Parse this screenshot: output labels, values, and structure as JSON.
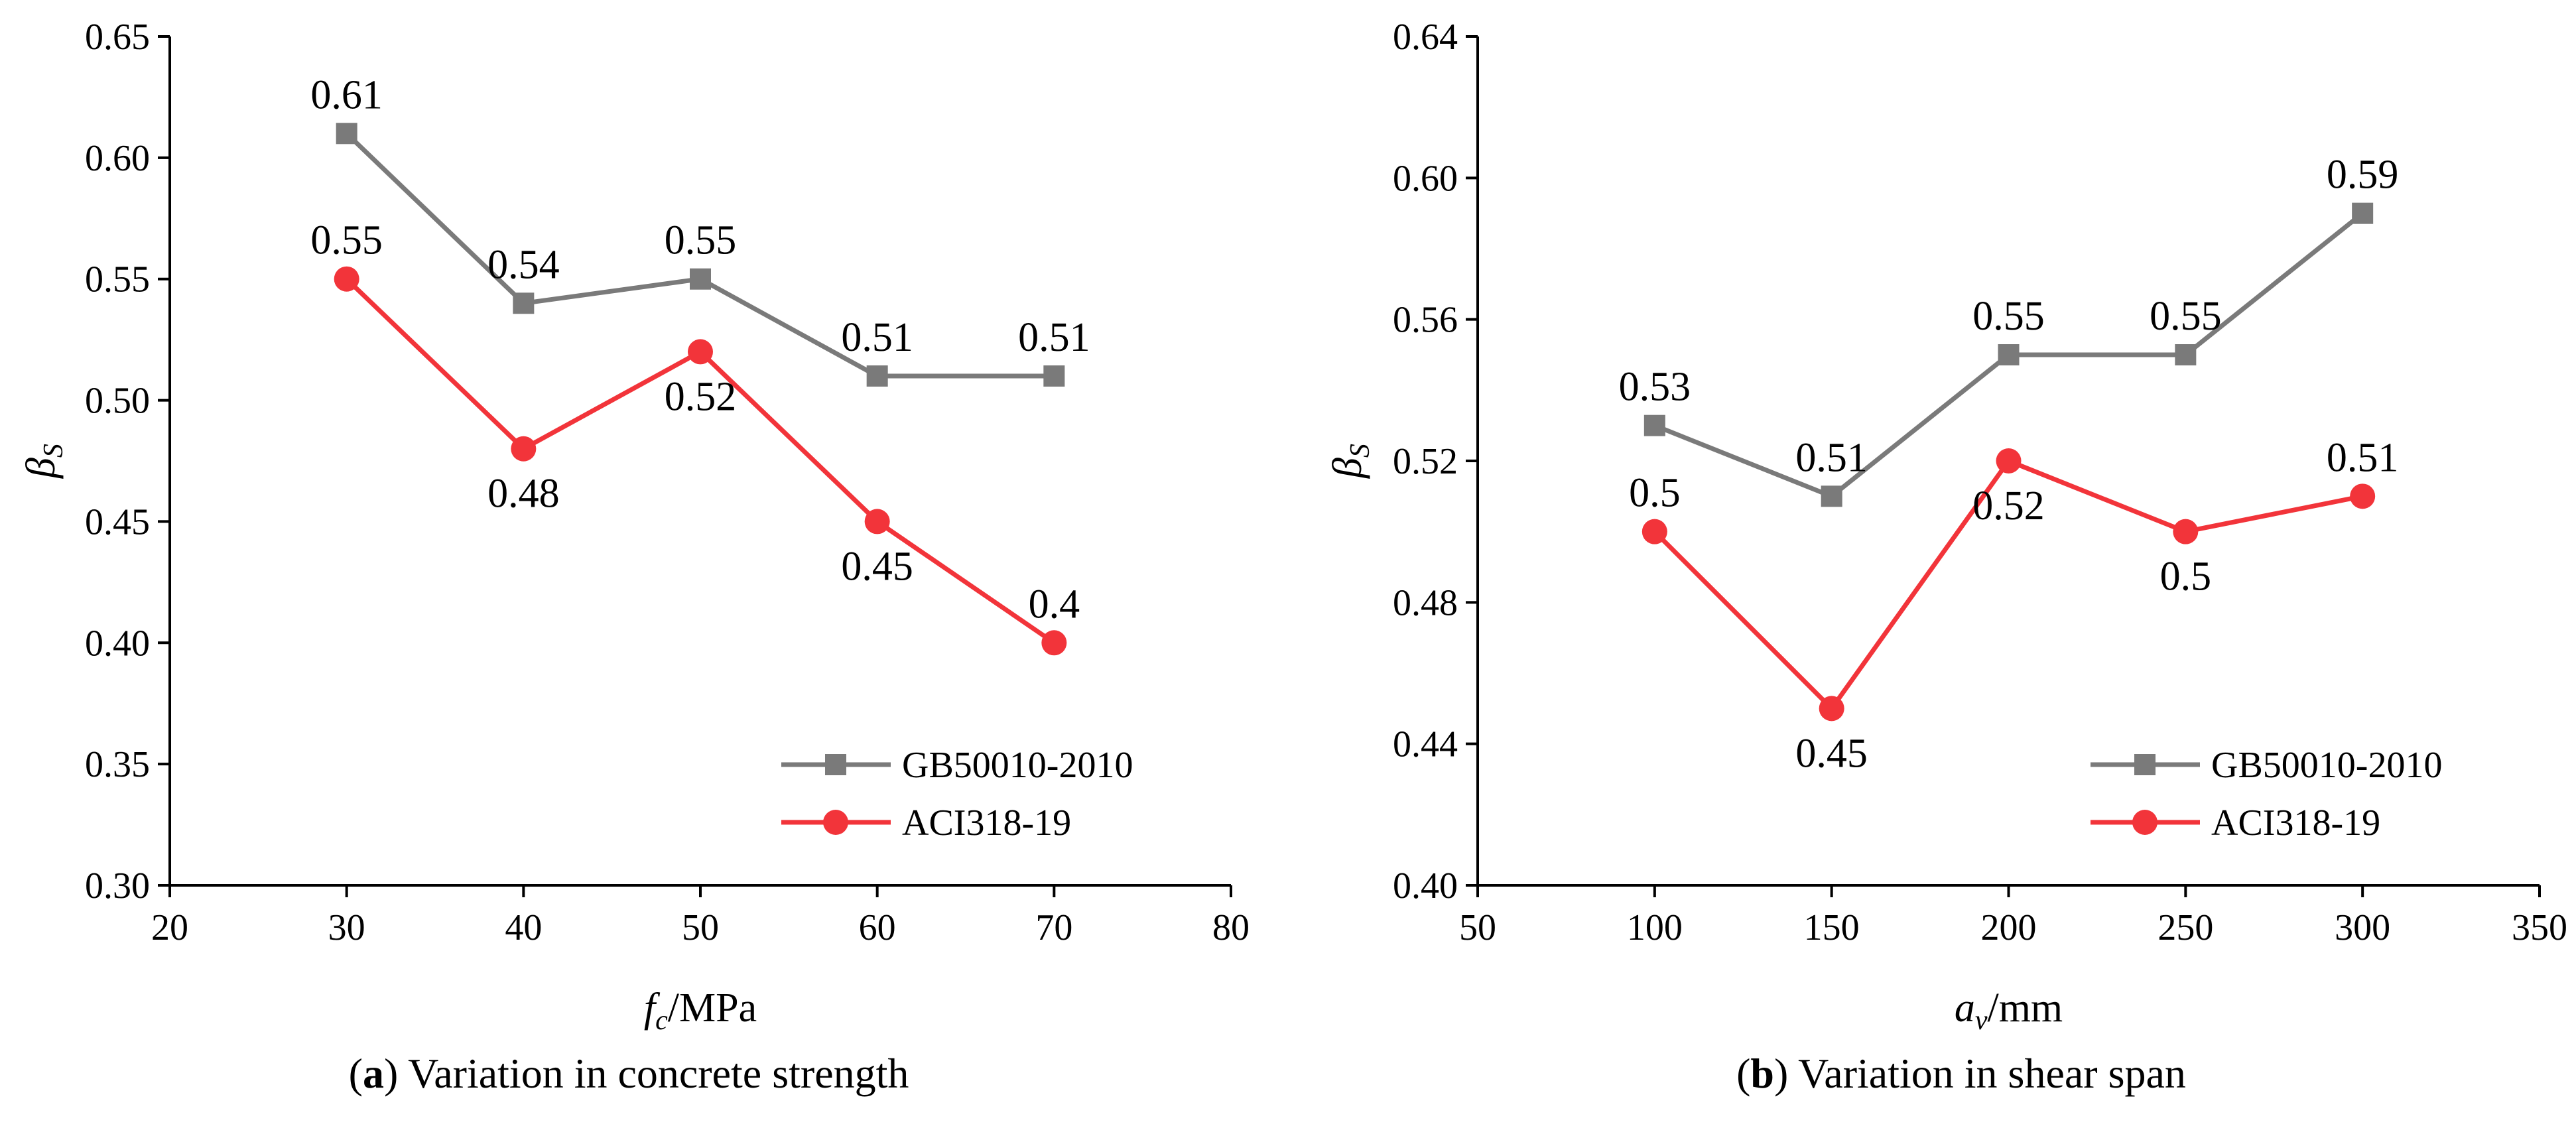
{
  "chart_data": [
    {
      "type": "line",
      "caption": {
        "letter": "a",
        "text": "Variation in concrete strength"
      },
      "xlabel": {
        "symbol": "f",
        "sub": "c",
        "unit": "/MPa"
      },
      "ylabel": {
        "symbol": "β",
        "sub": "S"
      },
      "xlim": [
        20,
        80
      ],
      "ylim": [
        0.3,
        0.65
      ],
      "x_ticks": [
        20,
        30,
        40,
        50,
        60,
        70,
        80
      ],
      "x_tick_labels": [
        "20",
        "30",
        "40",
        "50",
        "60",
        "70",
        "80"
      ],
      "y_ticks": [
        0.3,
        0.35,
        0.4,
        0.45,
        0.5,
        0.55,
        0.6,
        0.65
      ],
      "y_tick_labels": [
        "0.30",
        "0.35",
        "0.40",
        "0.45",
        "0.50",
        "0.55",
        "0.60",
        "0.65"
      ],
      "grid": false,
      "legend_position": "bottom-right",
      "series": [
        {
          "name": "GB50010-2010",
          "color": "#7a7a7a",
          "marker": "square",
          "x": [
            30,
            40,
            50,
            60,
            70
          ],
          "y": [
            0.61,
            0.54,
            0.55,
            0.51,
            0.51
          ],
          "labels": [
            "0.61",
            "0.54",
            "0.55",
            "0.51",
            "0.51"
          ],
          "label_side": [
            "above",
            "above",
            "above",
            "above",
            "above"
          ]
        },
        {
          "name": "ACI318-19",
          "color": "#f2343a",
          "marker": "circle",
          "x": [
            30,
            40,
            50,
            60,
            70
          ],
          "y": [
            0.55,
            0.48,
            0.52,
            0.45,
            0.4
          ],
          "labels": [
            "0.55",
            "0.48",
            "0.52",
            "0.45",
            "0.4"
          ],
          "label_side": [
            "above",
            "below",
            "below",
            "below",
            "above"
          ]
        }
      ]
    },
    {
      "type": "line",
      "caption": {
        "letter": "b",
        "text": "Variation in shear span"
      },
      "xlabel": {
        "symbol": "a",
        "sub": "v",
        "unit": "/mm"
      },
      "ylabel": {
        "symbol": "β",
        "sub": "S"
      },
      "xlim": [
        50,
        350
      ],
      "ylim": [
        0.4,
        0.64
      ],
      "x_ticks": [
        50,
        100,
        150,
        200,
        250,
        300,
        350
      ],
      "x_tick_labels": [
        "50",
        "100",
        "150",
        "200",
        "250",
        "300",
        "350"
      ],
      "y_ticks": [
        0.4,
        0.44,
        0.48,
        0.52,
        0.56,
        0.6,
        0.64
      ],
      "y_tick_labels": [
        "0.40",
        "0.44",
        "0.48",
        "0.52",
        "0.56",
        "0.60",
        "0.64"
      ],
      "grid": false,
      "legend_position": "bottom-right",
      "series": [
        {
          "name": "GB50010-2010",
          "color": "#7a7a7a",
          "marker": "square",
          "x": [
            100,
            150,
            200,
            250,
            300
          ],
          "y": [
            0.53,
            0.51,
            0.55,
            0.55,
            0.59
          ],
          "labels": [
            "0.53",
            "0.51",
            "0.55",
            "0.55",
            "0.59"
          ],
          "label_side": [
            "above",
            "above",
            "above",
            "above",
            "above"
          ]
        },
        {
          "name": "ACI318-19",
          "color": "#f2343a",
          "marker": "circle",
          "x": [
            100,
            150,
            200,
            250,
            300
          ],
          "y": [
            0.5,
            0.45,
            0.52,
            0.5,
            0.51
          ],
          "labels": [
            "0.5",
            "0.45",
            "0.52",
            "0.5",
            "0.51"
          ],
          "label_side": [
            "above",
            "below",
            "below",
            "below",
            "above"
          ]
        }
      ]
    }
  ]
}
